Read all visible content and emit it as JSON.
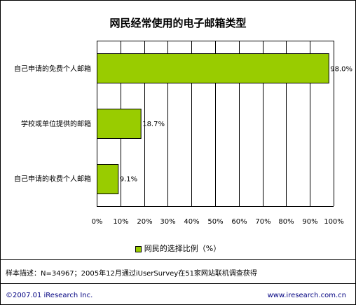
{
  "chart_data": {
    "type": "bar",
    "orientation": "horizontal",
    "title": "网民经常使用的电子邮箱类型",
    "categories": [
      "自己申请的免费个人邮箱",
      "学校或单位提供的邮箱",
      "自己申请的收费个人邮箱"
    ],
    "values": [
      98.0,
      18.7,
      9.1
    ],
    "value_labels": [
      "98.0%",
      "18.7%",
      "9.1%"
    ],
    "xlim": [
      0,
      100
    ],
    "x_ticks": [
      "0%",
      "10%",
      "20%",
      "30%",
      "40%",
      "50%",
      "60%",
      "70%",
      "80%",
      "90%",
      "100%"
    ],
    "grid": true,
    "legend": {
      "position": "bottom",
      "label": "网民的选择比例（%）"
    },
    "bar_color": "#99cc00"
  },
  "note": "样本描述：N=34967；2005年12月通过iUserSurvey在51家网站联机调查获得",
  "footer": {
    "copyright": "©2007.01 iResearch Inc.",
    "website": "www.iresearch.com.cn"
  }
}
